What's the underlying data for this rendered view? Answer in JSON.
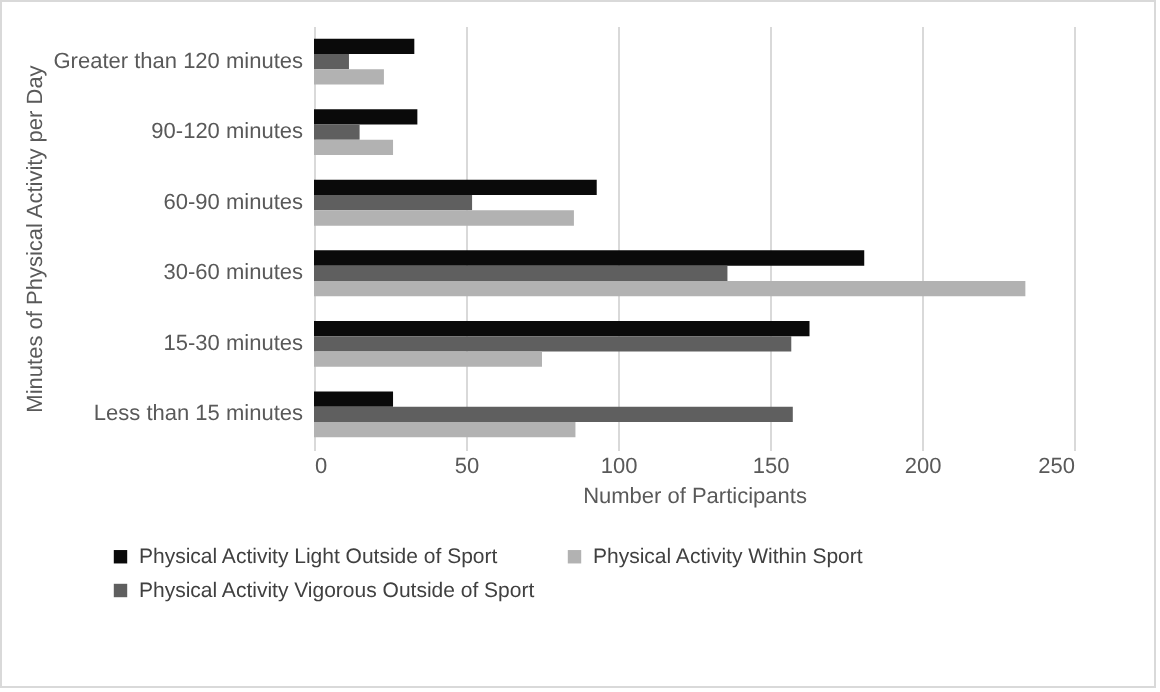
{
  "chart_data": {
    "type": "bar",
    "orientation": "horizontal",
    "xlabel": "Number of Participants",
    "ylabel": "Minutes of Physical Activity per Day",
    "categories": [
      "Greater than 120 minutes",
      "90-120 minutes",
      "60-90 minutes",
      "30-60 minutes",
      "15-30 minutes",
      "Less than 15 minutes"
    ],
    "series": [
      {
        "name": "Physical Activity Light Outside of Sport",
        "color": "#0a0a0a",
        "values": [
          33,
          34,
          93,
          181,
          163,
          26
        ]
      },
      {
        "name": "Physical Activity Vigorous Outside of Sport",
        "color": "#5f5f5f",
        "values": [
          11.5,
          15,
          52,
          136,
          157,
          157.5
        ]
      },
      {
        "name": "Physical Activity Within Sport",
        "color": "#b2b2b2",
        "values": [
          23,
          26,
          85.5,
          234,
          75,
          86
        ]
      }
    ],
    "xlim": [
      0,
      250
    ],
    "xticks": [
      0,
      50,
      100,
      150,
      200,
      250
    ],
    "grid": "x",
    "legend": "bottom"
  }
}
